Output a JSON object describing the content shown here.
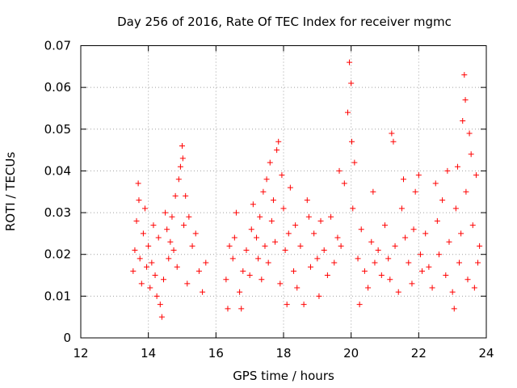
{
  "chart_data": {
    "type": "scatter",
    "title": "Day 256 of 2016, Rate Of TEC Index for receiver mgmc",
    "xlabel": "GPS time / hours",
    "ylabel": "ROTI / TECUs",
    "xlim": [
      12,
      24
    ],
    "ylim": [
      0,
      0.07
    ],
    "xticks": [
      12,
      14,
      16,
      18,
      20,
      22,
      24
    ],
    "xtick_labels": [
      "12",
      "14",
      "16",
      "18",
      "20",
      "22",
      "24"
    ],
    "yticks": [
      0,
      0.01,
      0.02,
      0.03,
      0.04,
      0.05,
      0.06,
      0.07
    ],
    "ytick_labels": [
      "0",
      "0.01",
      "0.02",
      "0.03",
      "0.04",
      "0.05",
      "0.06",
      "0.07"
    ],
    "grid": true,
    "marker": "+",
    "color": "#ff0000",
    "series": [
      {
        "name": "ROTI",
        "points": [
          [
            13.55,
            0.016
          ],
          [
            13.6,
            0.021
          ],
          [
            13.65,
            0.028
          ],
          [
            13.7,
            0.037
          ],
          [
            13.72,
            0.033
          ],
          [
            13.75,
            0.019
          ],
          [
            13.8,
            0.013
          ],
          [
            13.85,
            0.025
          ],
          [
            13.9,
            0.031
          ],
          [
            13.95,
            0.017
          ],
          [
            14.0,
            0.022
          ],
          [
            14.05,
            0.012
          ],
          [
            14.1,
            0.018
          ],
          [
            14.15,
            0.027
          ],
          [
            14.2,
            0.015
          ],
          [
            14.25,
            0.01
          ],
          [
            14.3,
            0.024
          ],
          [
            14.35,
            0.008
          ],
          [
            14.4,
            0.005
          ],
          [
            14.45,
            0.014
          ],
          [
            14.5,
            0.03
          ],
          [
            14.55,
            0.026
          ],
          [
            14.6,
            0.019
          ],
          [
            14.65,
            0.023
          ],
          [
            14.7,
            0.029
          ],
          [
            14.75,
            0.021
          ],
          [
            14.8,
            0.034
          ],
          [
            14.85,
            0.017
          ],
          [
            14.9,
            0.038
          ],
          [
            14.95,
            0.041
          ],
          [
            15.0,
            0.046
          ],
          [
            15.02,
            0.043
          ],
          [
            15.05,
            0.027
          ],
          [
            15.1,
            0.034
          ],
          [
            15.15,
            0.013
          ],
          [
            15.2,
            0.029
          ],
          [
            15.3,
            0.022
          ],
          [
            15.4,
            0.025
          ],
          [
            15.5,
            0.016
          ],
          [
            15.6,
            0.011
          ],
          [
            15.7,
            0.018
          ],
          [
            16.3,
            0.014
          ],
          [
            16.35,
            0.007
          ],
          [
            16.4,
            0.022
          ],
          [
            16.5,
            0.019
          ],
          [
            16.55,
            0.024
          ],
          [
            16.6,
            0.03
          ],
          [
            16.7,
            0.011
          ],
          [
            16.75,
            0.007
          ],
          [
            16.8,
            0.016
          ],
          [
            16.9,
            0.021
          ],
          [
            17.0,
            0.015
          ],
          [
            17.05,
            0.026
          ],
          [
            17.1,
            0.032
          ],
          [
            17.2,
            0.024
          ],
          [
            17.25,
            0.019
          ],
          [
            17.3,
            0.029
          ],
          [
            17.35,
            0.014
          ],
          [
            17.4,
            0.035
          ],
          [
            17.45,
            0.022
          ],
          [
            17.5,
            0.038
          ],
          [
            17.55,
            0.018
          ],
          [
            17.6,
            0.042
          ],
          [
            17.65,
            0.028
          ],
          [
            17.7,
            0.033
          ],
          [
            17.75,
            0.023
          ],
          [
            17.8,
            0.045
          ],
          [
            17.85,
            0.047
          ],
          [
            17.9,
            0.013
          ],
          [
            17.95,
            0.039
          ],
          [
            18.0,
            0.031
          ],
          [
            18.05,
            0.021
          ],
          [
            18.1,
            0.008
          ],
          [
            18.15,
            0.025
          ],
          [
            18.2,
            0.036
          ],
          [
            18.3,
            0.016
          ],
          [
            18.35,
            0.027
          ],
          [
            18.4,
            0.012
          ],
          [
            18.5,
            0.022
          ],
          [
            18.6,
            0.008
          ],
          [
            18.7,
            0.033
          ],
          [
            18.75,
            0.029
          ],
          [
            18.8,
            0.017
          ],
          [
            18.9,
            0.025
          ],
          [
            19.0,
            0.019
          ],
          [
            19.05,
            0.01
          ],
          [
            19.1,
            0.028
          ],
          [
            19.2,
            0.021
          ],
          [
            19.3,
            0.015
          ],
          [
            19.4,
            0.029
          ],
          [
            19.5,
            0.018
          ],
          [
            19.6,
            0.024
          ],
          [
            19.65,
            0.04
          ],
          [
            19.7,
            0.022
          ],
          [
            19.8,
            0.037
          ],
          [
            19.9,
            0.054
          ],
          [
            19.95,
            0.066
          ],
          [
            20.0,
            0.061
          ],
          [
            20.02,
            0.047
          ],
          [
            20.05,
            0.031
          ],
          [
            20.1,
            0.042
          ],
          [
            20.2,
            0.019
          ],
          [
            20.25,
            0.008
          ],
          [
            20.3,
            0.026
          ],
          [
            20.4,
            0.016
          ],
          [
            20.5,
            0.012
          ],
          [
            20.6,
            0.023
          ],
          [
            20.65,
            0.035
          ],
          [
            20.7,
            0.018
          ],
          [
            20.8,
            0.021
          ],
          [
            20.9,
            0.015
          ],
          [
            21.0,
            0.027
          ],
          [
            21.1,
            0.019
          ],
          [
            21.15,
            0.014
          ],
          [
            21.2,
            0.049
          ],
          [
            21.25,
            0.047
          ],
          [
            21.3,
            0.022
          ],
          [
            21.4,
            0.011
          ],
          [
            21.5,
            0.031
          ],
          [
            21.55,
            0.038
          ],
          [
            21.6,
            0.024
          ],
          [
            21.7,
            0.018
          ],
          [
            21.8,
            0.013
          ],
          [
            21.85,
            0.026
          ],
          [
            21.9,
            0.035
          ],
          [
            22.0,
            0.039
          ],
          [
            22.05,
            0.02
          ],
          [
            22.1,
            0.016
          ],
          [
            22.2,
            0.025
          ],
          [
            22.3,
            0.017
          ],
          [
            22.4,
            0.012
          ],
          [
            22.5,
            0.037
          ],
          [
            22.55,
            0.028
          ],
          [
            22.6,
            0.02
          ],
          [
            22.7,
            0.033
          ],
          [
            22.8,
            0.015
          ],
          [
            22.85,
            0.04
          ],
          [
            22.9,
            0.023
          ],
          [
            23.0,
            0.011
          ],
          [
            23.05,
            0.007
          ],
          [
            23.1,
            0.031
          ],
          [
            23.15,
            0.041
          ],
          [
            23.2,
            0.018
          ],
          [
            23.25,
            0.025
          ],
          [
            23.3,
            0.052
          ],
          [
            23.35,
            0.063
          ],
          [
            23.38,
            0.057
          ],
          [
            23.4,
            0.035
          ],
          [
            23.45,
            0.014
          ],
          [
            23.5,
            0.049
          ],
          [
            23.55,
            0.044
          ],
          [
            23.6,
            0.027
          ],
          [
            23.65,
            0.012
          ],
          [
            23.7,
            0.039
          ],
          [
            23.75,
            0.018
          ],
          [
            23.8,
            0.022
          ]
        ]
      }
    ]
  }
}
